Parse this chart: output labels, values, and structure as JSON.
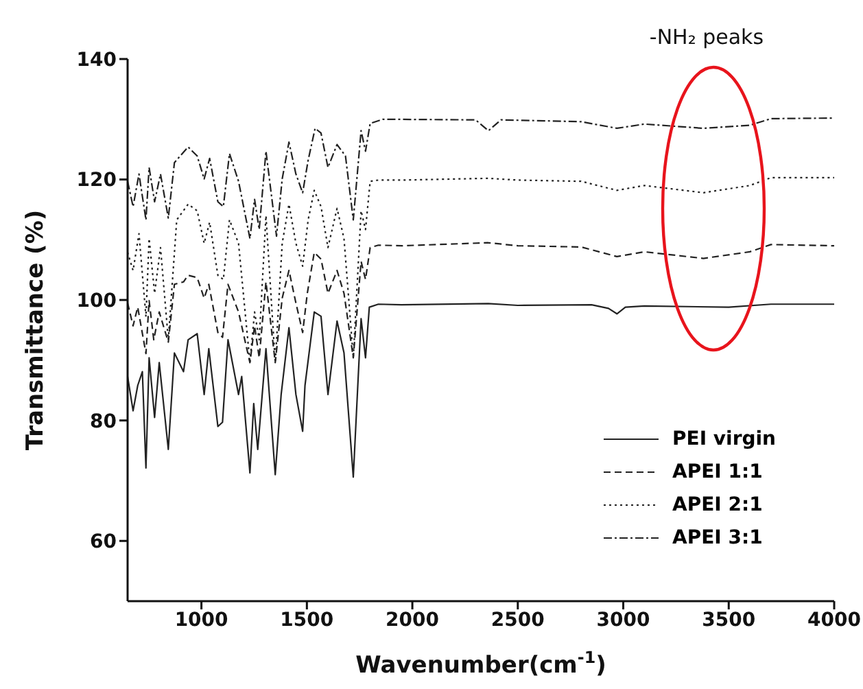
{
  "chart_data": {
    "type": "line",
    "xlabel": "Wavenumber(cm$^{-1}$)",
    "ylabel": "Transmittance (%)",
    "xlim": [
      650,
      4000
    ],
    "xticks": [
      1000,
      1500,
      2000,
      2500,
      3000,
      3500,
      4000
    ],
    "ylim": [
      50,
      140
    ],
    "yticks": [
      60,
      80,
      100,
      120,
      140
    ],
    "grid": false,
    "legend": "bottom right",
    "marker": "none",
    "annotations": [
      "-NH₂ peaks"
    ],
    "series": [
      {
        "name": "PEI virgin",
        "color": "#222222",
        "line_style": "solid",
        "x": [
          650,
          676,
          698,
          720,
          737,
          752,
          778,
          800,
          843,
          872,
          915,
          937,
          980,
          1013,
          1035,
          1078,
          1100,
          1126,
          1176,
          1191,
          1230,
          1248,
          1267,
          1306,
          1350,
          1378,
          1415,
          1448,
          1480,
          1491,
          1535,
          1567,
          1600,
          1643,
          1676,
          1720,
          1757,
          1778,
          1796,
          1839,
          1948,
          2360,
          2500,
          2850,
          2930,
          2970,
          3010,
          3100,
          3500,
          3700,
          4000
        ],
        "values": [
          87.3,
          81.6,
          85.8,
          88.1,
          72.1,
          90.4,
          80.5,
          89.6,
          75.2,
          91.2,
          88.1,
          93.4,
          94.4,
          84.3,
          91.9,
          79.0,
          79.7,
          93.4,
          84.3,
          87.3,
          71.3,
          82.8,
          75.2,
          91.9,
          71.0,
          84.3,
          95.4,
          84.3,
          78.2,
          85.8,
          98.0,
          97.3,
          84.3,
          96.5,
          91.2,
          70.6,
          96.9,
          90.4,
          98.8,
          99.3,
          99.2,
          99.4,
          99.1,
          99.2,
          98.6,
          97.7,
          98.8,
          99.0,
          98.8,
          99.3,
          99.3
        ]
      },
      {
        "name": "APEI 1:1",
        "color": "#222222",
        "line_style": "dashed",
        "x": [
          650,
          676,
          698,
          737,
          752,
          774,
          800,
          843,
          872,
          915,
          937,
          980,
          1013,
          1035,
          1078,
          1100,
          1126,
          1176,
          1230,
          1252,
          1274,
          1306,
          1350,
          1383,
          1415,
          1448,
          1480,
          1502,
          1535,
          1567,
          1600,
          1643,
          1676,
          1720,
          1757,
          1778,
          1800,
          1839,
          1950,
          2360,
          2500,
          2800,
          2970,
          3100,
          3380,
          3600,
          3700,
          4000
        ],
        "values": [
          99.5,
          95.7,
          98.8,
          91.1,
          99.9,
          93.4,
          98.0,
          93.0,
          102.6,
          103.0,
          104.1,
          103.7,
          100.3,
          102.6,
          94.6,
          93.8,
          102.6,
          98.0,
          89.6,
          95.7,
          90.4,
          103.0,
          89.6,
          100.3,
          104.9,
          99.5,
          94.6,
          101.1,
          107.9,
          106.8,
          101.1,
          104.9,
          101.1,
          90.4,
          106.4,
          103.4,
          108.7,
          109.1,
          109.0,
          109.5,
          109.0,
          108.8,
          107.2,
          108.0,
          106.9,
          108.0,
          109.2,
          109.0
        ]
      },
      {
        "name": "APEI 2:1",
        "color": "#222222",
        "line_style": "dotted",
        "x": [
          650,
          676,
          704,
          737,
          752,
          778,
          806,
          843,
          883,
          937,
          980,
          1013,
          1039,
          1078,
          1104,
          1133,
          1176,
          1230,
          1252,
          1274,
          1306,
          1350,
          1383,
          1415,
          1448,
          1480,
          1506,
          1535,
          1567,
          1600,
          1643,
          1676,
          1720,
          1757,
          1778,
          1800,
          1839,
          1950,
          2360,
          2500,
          2800,
          2970,
          3100,
          3380,
          3600,
          3700,
          4000
        ],
        "values": [
          107.9,
          104.9,
          111.0,
          97.2,
          110.2,
          101.1,
          108.7,
          93.4,
          113.3,
          115.9,
          114.8,
          109.4,
          112.9,
          104.1,
          103.4,
          113.3,
          109.4,
          89.6,
          98.0,
          93.4,
          114.0,
          89.6,
          109.4,
          115.9,
          109.4,
          105.6,
          113.3,
          118.2,
          115.5,
          108.7,
          115.2,
          110.2,
          90.4,
          114.8,
          111.7,
          119.7,
          119.9,
          119.9,
          120.2,
          119.9,
          119.7,
          118.2,
          119.0,
          117.8,
          119.0,
          120.3,
          120.3
        ]
      },
      {
        "name": "APEI 3:1",
        "color": "#222222",
        "line_style": "dashdot",
        "x": [
          650,
          676,
          704,
          737,
          752,
          778,
          806,
          843,
          872,
          937,
          980,
          1013,
          1039,
          1078,
          1104,
          1133,
          1176,
          1230,
          1252,
          1274,
          1306,
          1356,
          1383,
          1415,
          1448,
          1480,
          1506,
          1539,
          1567,
          1600,
          1643,
          1683,
          1720,
          1757,
          1778,
          1800,
          1861,
          2300,
          2361,
          2420,
          2800,
          2970,
          3100,
          3380,
          3600,
          3700,
          4000
        ],
        "values": [
          119.7,
          115.5,
          120.9,
          113.3,
          122.0,
          116.3,
          120.9,
          113.6,
          122.8,
          125.4,
          123.9,
          120.1,
          123.5,
          116.3,
          115.5,
          124.3,
          119.7,
          110.2,
          116.7,
          111.7,
          124.7,
          110.6,
          120.1,
          126.2,
          120.9,
          117.8,
          123.2,
          128.5,
          127.7,
          122.0,
          125.8,
          123.9,
          113.3,
          128.1,
          124.7,
          129.3,
          130.0,
          129.9,
          128.1,
          129.9,
          129.6,
          128.5,
          129.2,
          128.5,
          129.0,
          130.1,
          130.2
        ]
      }
    ]
  }
}
